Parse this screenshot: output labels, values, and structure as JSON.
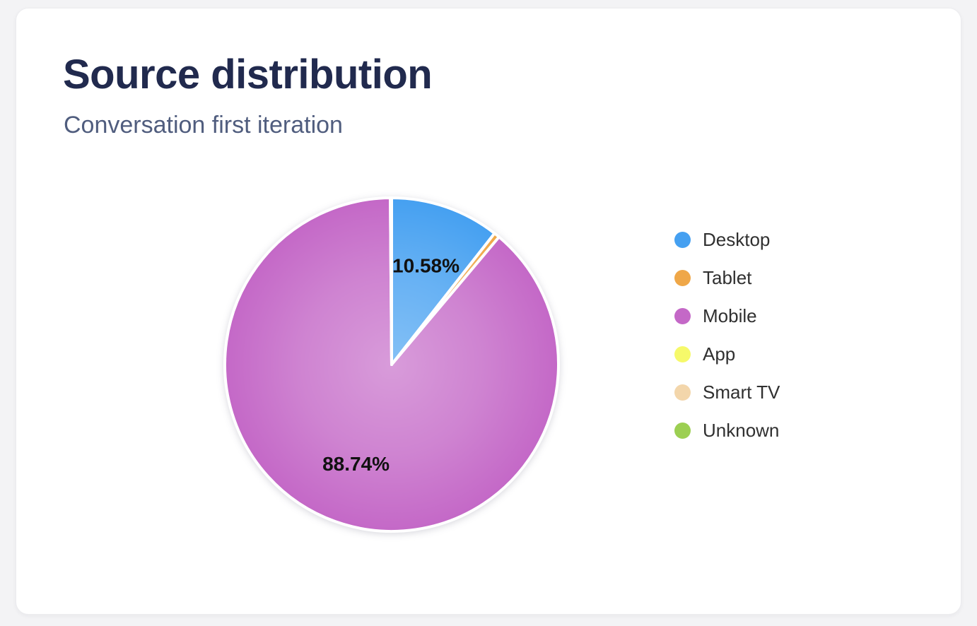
{
  "page": {
    "background_color": "#f3f3f5",
    "card_background_color": "#ffffff"
  },
  "header": {
    "title": "Source distribution",
    "subtitle": "Conversation first iteration",
    "title_color": "#212a4e",
    "subtitle_color": "#505d7e"
  },
  "chart_data": {
    "type": "pie",
    "title": "Source distribution",
    "subtitle": "Conversation first iteration",
    "legend_position": "right",
    "start_angle_deg": 0,
    "direction": "clockwise",
    "slice_label_color": "#111111",
    "slice_gap_color": "#ffffff",
    "center_highlight": true,
    "slices": [
      {
        "label": "Desktop",
        "value": 10.58,
        "display_label": "10.58%",
        "label_shown": true,
        "color": "#45a0f1"
      },
      {
        "label": "Tablet",
        "value": 0.55,
        "display_label": "",
        "label_shown": false,
        "color": "#efa748"
      },
      {
        "label": "Mobile",
        "value": 88.74,
        "display_label": "88.74%",
        "label_shown": true,
        "color": "#c468c7"
      },
      {
        "label": "App",
        "value": 0.05,
        "display_label": "",
        "label_shown": false,
        "color": "#f6f96a"
      },
      {
        "label": "Smart TV",
        "value": 0.04,
        "display_label": "",
        "label_shown": false,
        "color": "#f3d6ab"
      },
      {
        "label": "Unknown",
        "value": 0.04,
        "display_label": "",
        "label_shown": false,
        "color": "#9ccf52"
      }
    ]
  }
}
